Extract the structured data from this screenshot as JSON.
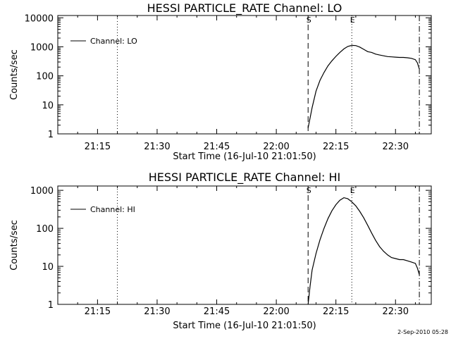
{
  "chart_data": [
    {
      "type": "line",
      "title": "HESSI PARTICLE_RATE Channel: LO",
      "xlabel": "Start Time (16-Jul-10 21:01:50)",
      "ylabel": "Counts/sec",
      "yscale": "log",
      "ylim": [
        1,
        12000
      ],
      "xlim": [
        "21:05",
        "22:39"
      ],
      "x_ticks": [
        "21:15",
        "21:30",
        "21:45",
        "22:00",
        "22:15",
        "22:30"
      ],
      "y_ticks": [
        "1",
        "10",
        "100",
        "1000",
        "10000"
      ],
      "legend": {
        "label": "Channel: LO",
        "placement": "top-left"
      },
      "markers": [
        {
          "label": "",
          "time": "21:20",
          "style": "dotted"
        },
        {
          "label": "S",
          "time": "22:08",
          "style": "dashed"
        },
        {
          "label": "E",
          "time": "22:19",
          "style": "dotted"
        },
        {
          "label": "",
          "time": "22:36",
          "style": "dash-dot"
        }
      ],
      "series": [
        {
          "name": "Channel: LO",
          "x": [
            "22:08",
            "22:08.5",
            "22:09",
            "22:10",
            "22:11",
            "22:12",
            "22:13",
            "22:14",
            "22:15",
            "22:16",
            "22:17",
            "22:18",
            "22:19",
            "22:20",
            "22:21",
            "22:22",
            "22:23",
            "22:24",
            "22:25",
            "22:26",
            "22:27",
            "22:28",
            "22:29",
            "22:30",
            "22:31",
            "22:32",
            "22:33",
            "22:34",
            "22:35",
            "22:35.5",
            "22:36"
          ],
          "y": [
            1.6,
            3.5,
            8,
            30,
            70,
            130,
            220,
            330,
            470,
            640,
            850,
            1030,
            1120,
            1100,
            980,
            820,
            680,
            640,
            560,
            520,
            490,
            460,
            450,
            440,
            430,
            430,
            420,
            400,
            360,
            280,
            170
          ]
        }
      ]
    },
    {
      "type": "line",
      "title": "HESSI PARTICLE_RATE Channel: HI",
      "xlabel": "Start Time (16-Jul-10 21:01:50)",
      "ylabel": "Counts/sec",
      "yscale": "log",
      "ylim": [
        1,
        1300
      ],
      "xlim": [
        "21:05",
        "22:39"
      ],
      "x_ticks": [
        "21:15",
        "21:30",
        "21:45",
        "22:00",
        "22:15",
        "22:30"
      ],
      "y_ticks": [
        "1",
        "10",
        "100",
        "1000"
      ],
      "legend": {
        "label": "Channel: HI",
        "placement": "top-left"
      },
      "markers": [
        {
          "label": "",
          "time": "21:20",
          "style": "dotted"
        },
        {
          "label": "S",
          "time": "22:08",
          "style": "dashed"
        },
        {
          "label": "E",
          "time": "22:19",
          "style": "dotted"
        },
        {
          "label": "",
          "time": "22:36",
          "style": "dash-dot"
        }
      ],
      "series": [
        {
          "name": "Channel: HI",
          "x": [
            "22:08",
            "22:08.5",
            "22:09",
            "22:10",
            "22:11",
            "22:12",
            "22:13",
            "22:14",
            "22:15",
            "22:16",
            "22:17",
            "22:18",
            "22:19",
            "22:20",
            "22:21",
            "22:22",
            "22:23",
            "22:24",
            "22:25",
            "22:26",
            "22:27",
            "22:28",
            "22:29",
            "22:30",
            "22:31",
            "22:32",
            "22:33",
            "22:34",
            "22:35",
            "22:35.5",
            "22:36"
          ],
          "y": [
            1.0,
            3,
            8,
            22,
            50,
            100,
            180,
            290,
            420,
            550,
            640,
            600,
            500,
            390,
            280,
            190,
            120,
            75,
            48,
            33,
            25,
            20,
            17,
            16,
            15,
            15,
            14,
            13,
            12,
            9,
            6
          ]
        }
      ]
    }
  ],
  "footer": {
    "stamp": "2-Sep-2010 05:28"
  }
}
